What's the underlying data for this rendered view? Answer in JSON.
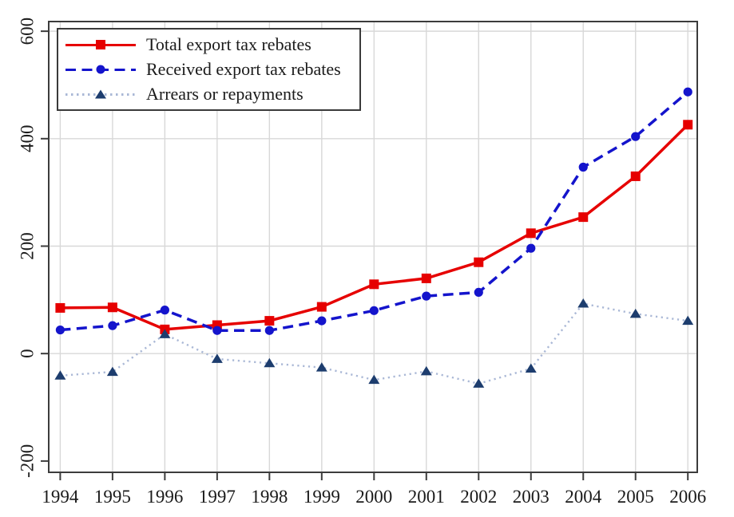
{
  "chart_data": {
    "type": "line",
    "title": "",
    "xlabel": "",
    "ylabel": "",
    "x": [
      1994,
      1995,
      1996,
      1997,
      1998,
      1999,
      2000,
      2001,
      2002,
      2003,
      2004,
      2005,
      2006
    ],
    "x_tick_labels": [
      "1994",
      "1995",
      "1996",
      "1997",
      "1998",
      "1999",
      "2000",
      "2001",
      "2002",
      "2003",
      "2004",
      "2005",
      "2006"
    ],
    "y_ticks": [
      600,
      400,
      200,
      0,
      -200
    ],
    "y_tick_labels": [
      "600",
      "400",
      "200",
      "0",
      "-200"
    ],
    "y_grid_ticks": [
      600,
      400,
      200,
      0
    ],
    "ylim": [
      -221,
      618
    ],
    "xlim": [
      1993.78,
      2006.18
    ],
    "grid": true,
    "legend_position": "top-left",
    "series": [
      {
        "name": "Total export tax rebates",
        "line_style": "solid",
        "line_color": "#e60000",
        "marker": "square",
        "marker_color": "#e60000",
        "values": [
          85,
          86,
          45,
          53,
          61,
          87,
          129,
          140,
          170,
          224,
          254,
          330,
          426
        ]
      },
      {
        "name": "Received export tax rebates",
        "line_style": "dashed",
        "line_color": "#1414cc",
        "marker": "circle",
        "marker_color": "#1414cc",
        "values": [
          44,
          52,
          81,
          43,
          43,
          61,
          80,
          107,
          114,
          196,
          347,
          404,
          487
        ]
      },
      {
        "name": "Arrears or repayments",
        "line_style": "dotted",
        "line_color": "#aab8d6",
        "marker": "triangle",
        "marker_color": "#1d3d6e",
        "values": [
          -41,
          -34,
          36,
          -10,
          -18,
          -26,
          -49,
          -33,
          -56,
          -28,
          93,
          74,
          61
        ]
      }
    ]
  },
  "colors": {
    "background": "#ffffff",
    "grid": "#d8d8d8",
    "frame": "#3c3c3c",
    "tick_text": "#1a1a1a",
    "legend_border": "#3a3a3a"
  }
}
